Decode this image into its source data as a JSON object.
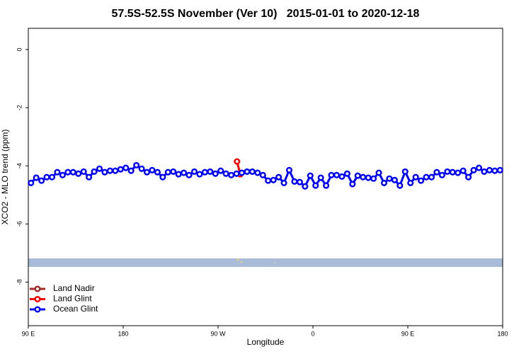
{
  "chart_data": {
    "type": "line",
    "title": "57.5S-52.5S November (Ver 10)   2015-01-01 to 2020-12-18",
    "x_label": "Longitude",
    "y_label": "XCO2 - MLO trend (ppm)",
    "xlim": [
      90,
      540
    ],
    "xticks": [
      {
        "value": 90,
        "label": "90 E"
      },
      180,
      {
        "value": 270,
        "label": "90 W"
      },
      {
        "value": 360,
        "label": "0"
      },
      {
        "value": 450,
        "label": "90 E"
      },
      {
        "value": 540,
        "label": "180"
      }
    ],
    "ylim": [
      -9.5,
      0.73
    ],
    "yticks": [
      0,
      -2,
      -4,
      -6,
      -8
    ],
    "legend": "bottom-left",
    "series": [
      {
        "name": "Land Nadir",
        "color": "#a52a2a",
        "x": [],
        "values": []
      },
      {
        "name": "Land Glint",
        "color": "#ff0000",
        "x": [
          288,
          291
        ],
        "values": [
          -3.85,
          -4.29
        ]
      },
      {
        "name": "Ocean Glint",
        "color": "#0000ff",
        "x": [
          92.5,
          97.5,
          102.5,
          107.5,
          112.5,
          117.5,
          122.5,
          127.5,
          132.5,
          137.5,
          142.5,
          147.5,
          152.5,
          157.5,
          162.5,
          167.5,
          172.5,
          177.5,
          182.5,
          187.5,
          192.5,
          197.5,
          202.5,
          207.5,
          212.5,
          217.5,
          222.5,
          227.5,
          232.5,
          237.5,
          242.5,
          247.5,
          252.5,
          257.5,
          262.5,
          267.5,
          272.5,
          277.5,
          282.5,
          287.5,
          292.5,
          297.5,
          302.5,
          307.5,
          312.5,
          317.5,
          322.5,
          327.5,
          332.5,
          337.5,
          342.5,
          347.5,
          352.5,
          357.5,
          362.5,
          367.5,
          372.5,
          377.5,
          382.5,
          387.5,
          392.5,
          397.5,
          402.5,
          407.5,
          412.5,
          417.5,
          422.5,
          427.5,
          432.5,
          437.5,
          442.5,
          447.5,
          452.5,
          457.5,
          462.5,
          467.5,
          472.5,
          477.5,
          482.5,
          487.5,
          492.5,
          497.5,
          502.5,
          507.5,
          512.5,
          517.5,
          522.5,
          527.5,
          532.5,
          537.5
        ],
        "values": [
          -4.59,
          -4.41,
          -4.51,
          -4.39,
          -4.39,
          -4.22,
          -4.32,
          -4.22,
          -4.22,
          -4.27,
          -4.2,
          -4.39,
          -4.2,
          -4.1,
          -4.22,
          -4.17,
          -4.17,
          -4.12,
          -4.07,
          -4.17,
          -3.98,
          -4.1,
          -4.22,
          -4.15,
          -4.22,
          -4.39,
          -4.22,
          -4.2,
          -4.29,
          -4.24,
          -4.32,
          -4.2,
          -4.29,
          -4.22,
          -4.2,
          -4.27,
          -4.17,
          -4.27,
          -4.32,
          -4.27,
          -4.24,
          -4.2,
          -4.2,
          -4.24,
          -4.32,
          -4.51,
          -4.49,
          -4.39,
          -4.59,
          -4.15,
          -4.54,
          -4.56,
          -4.71,
          -4.34,
          -4.68,
          -4.41,
          -4.68,
          -4.32,
          -4.32,
          -4.37,
          -4.27,
          -4.63,
          -4.34,
          -4.39,
          -4.41,
          -4.44,
          -4.24,
          -4.59,
          -4.44,
          -4.49,
          -4.68,
          -4.2,
          -4.59,
          -4.39,
          -4.51,
          -4.39,
          -4.39,
          -4.22,
          -4.32,
          -4.2,
          -4.22,
          -4.24,
          -4.17,
          -4.39,
          -4.15,
          -4.07,
          -4.2,
          -4.15,
          -4.17,
          -4.15
        ]
      }
    ]
  }
}
